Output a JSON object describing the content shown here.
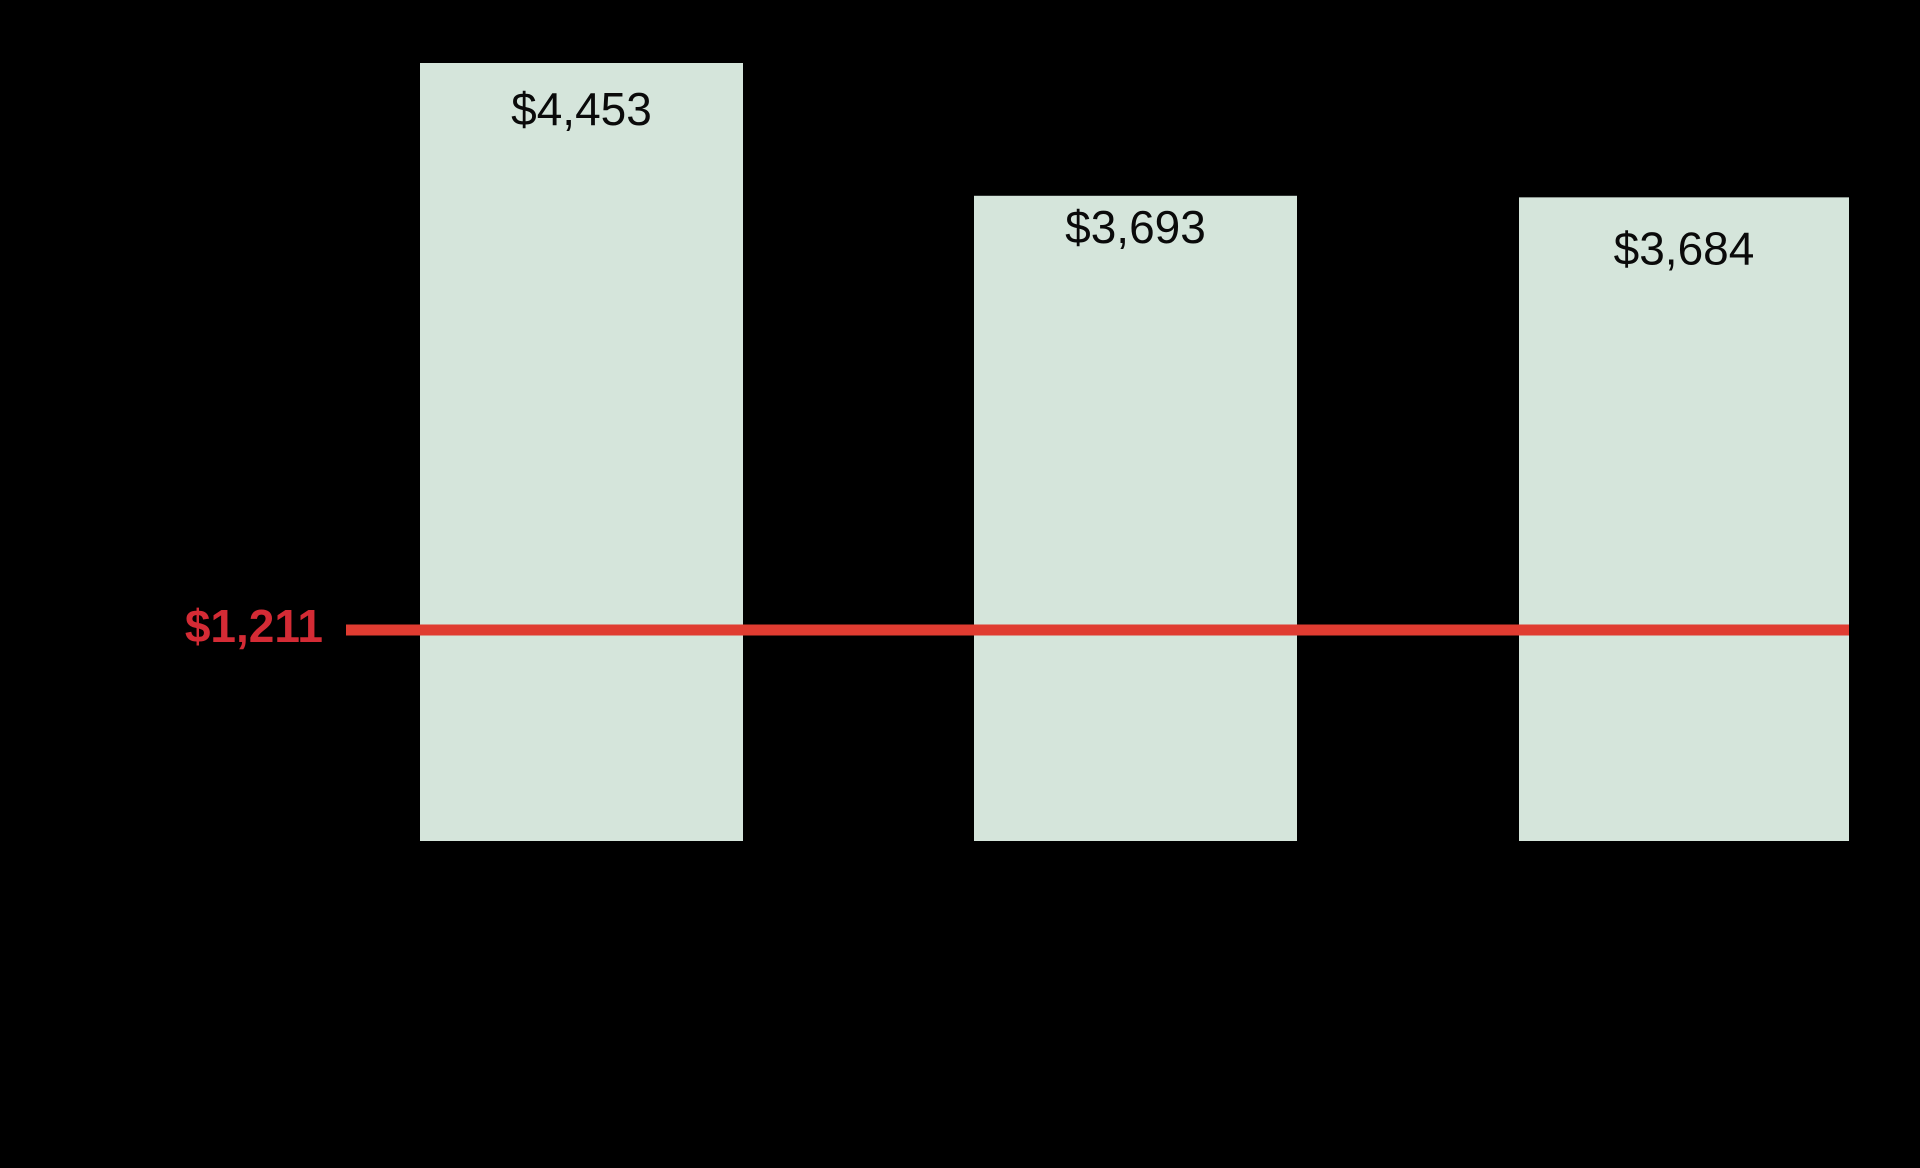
{
  "chart_data": {
    "type": "bar",
    "title": "",
    "xlabel": "",
    "ylabel": "",
    "categories": [
      "",
      "",
      ""
    ],
    "values": [
      4453,
      3693,
      3684
    ],
    "data_labels": [
      "$4,453",
      "$3,693",
      "$3,684"
    ],
    "ylim": [
      0,
      4453
    ],
    "grid": false,
    "reference_line": {
      "value": 1211,
      "label": "$1,211",
      "color": "#e03c31"
    },
    "colors": {
      "background": "#000000",
      "bar_fill": "#d5e5db",
      "bar_label": "#0a0a0a",
      "reference_line": "#e03c31",
      "reference_label": "#d42b35"
    }
  }
}
